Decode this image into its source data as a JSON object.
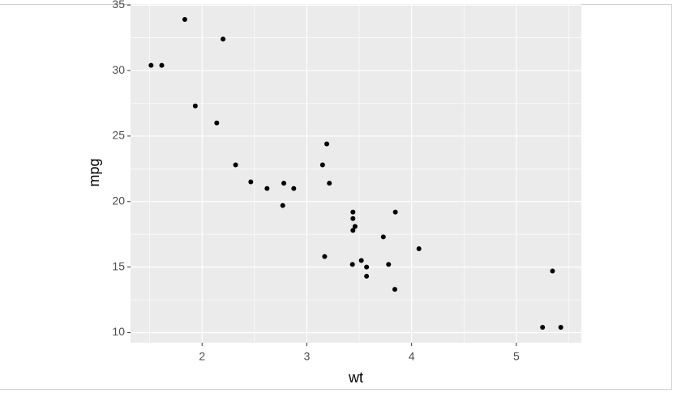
{
  "chart_data": {
    "type": "scatter",
    "x_label": "wt",
    "y_label": "mpg",
    "x": [
      2.62,
      2.875,
      2.32,
      3.215,
      3.44,
      3.46,
      3.57,
      3.19,
      3.15,
      3.44,
      3.44,
      4.07,
      3.73,
      3.78,
      5.25,
      5.424,
      5.345,
      2.2,
      1.615,
      1.835,
      2.465,
      3.52,
      3.435,
      3.84,
      3.845,
      1.935,
      2.14,
      1.513,
      3.17,
      2.77,
      3.57,
      2.78
    ],
    "values": [
      21.0,
      21.0,
      22.8,
      21.4,
      18.7,
      18.1,
      14.3,
      24.4,
      22.8,
      19.2,
      17.8,
      16.4,
      17.3,
      15.2,
      10.4,
      10.4,
      14.7,
      32.4,
      30.4,
      33.9,
      21.5,
      15.5,
      15.2,
      13.3,
      19.2,
      27.3,
      26.0,
      30.4,
      15.8,
      19.7,
      15.0,
      21.4
    ],
    "color": "#000000",
    "xlim": [
      1.317,
      5.62
    ],
    "ylim": [
      9.225,
      35.075
    ],
    "xticks": [
      2,
      3,
      4,
      5
    ],
    "yticks": [
      10,
      15,
      20,
      25,
      30,
      35
    ],
    "grid": true,
    "minor_grid": true,
    "panel_color": "#ebebeb"
  }
}
